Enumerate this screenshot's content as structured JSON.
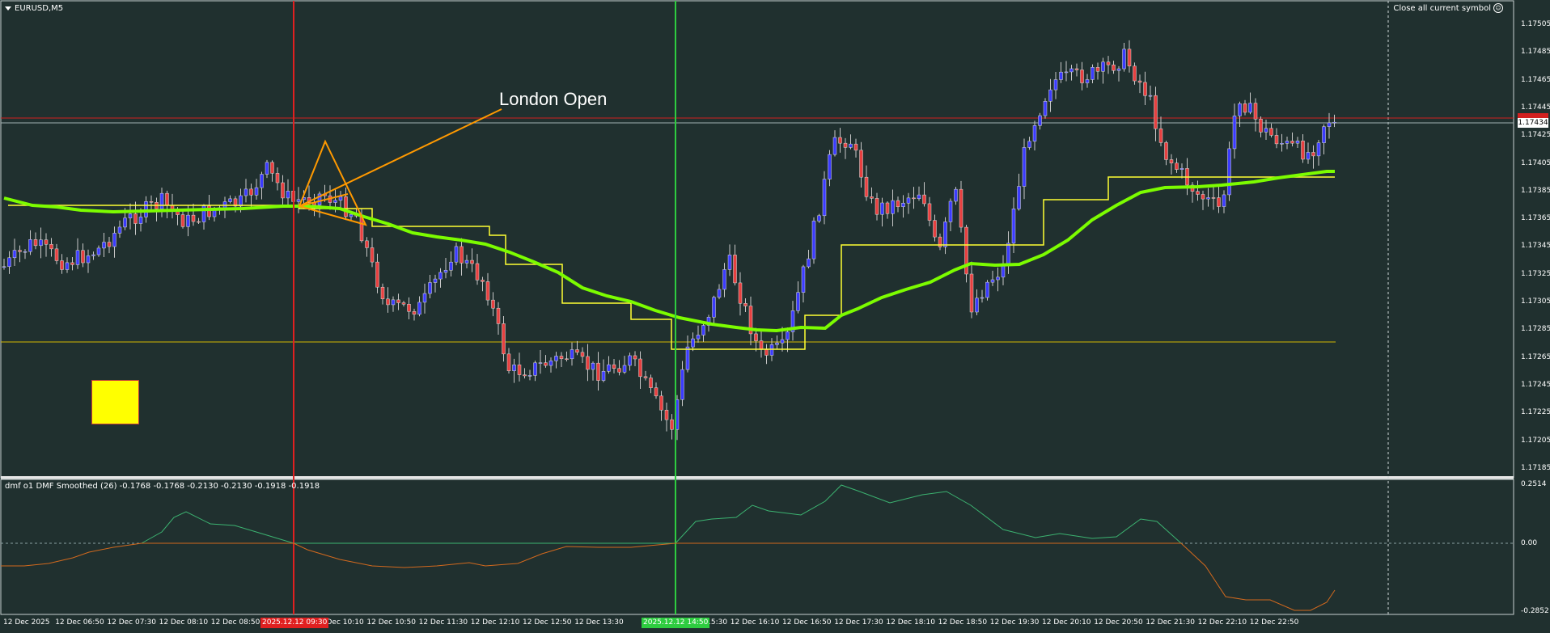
{
  "window": {
    "symbol_title": "EURUSD,M5",
    "close_all_label": "Close all current symbol",
    "close_all_icon": "smiley-icon"
  },
  "annotation": {
    "london_open_label": "London Open",
    "yellow_box_color": "#ffff00"
  },
  "indicator": {
    "label": "dmf o1 DMF Smoothed (26) -0.1768 -0.1768 -0.2130 -0.2130 -0.1918 -0.1918",
    "axis_labels": [
      "0.2514",
      "0.00",
      "-0.2852"
    ]
  },
  "price_axis": {
    "labels": [
      "1.17505",
      "1.17485",
      "1.17465",
      "1.17445",
      "1.17425",
      "1.17405",
      "1.17385",
      "1.17365",
      "1.17345",
      "1.17325",
      "1.17305",
      "1.17285",
      "1.17265",
      "1.17245",
      "1.17225",
      "1.17205",
      "1.17185"
    ],
    "current_price": "1.17434"
  },
  "time_axis": {
    "labels": [
      "12 Dec 2025",
      "12 Dec 06:50",
      "12 Dec 07:30",
      "12 Dec 08:10",
      "12 Dec 08:50",
      "",
      "12 Dec 10:10",
      "12 Dec 10:50",
      "12 Dec 11:30",
      "12 Dec 12:10",
      "12 Dec 12:50",
      "12 Dec 13:30",
      "",
      "12 Dec 15:30",
      "12 Dec 16:10",
      "12 Dec 16:50",
      "12 Dec 17:30",
      "12 Dec 18:10",
      "12 Dec 18:50",
      "12 Dec 19:30",
      "12 Dec 20:10",
      "12 Dec 20:50",
      "12 Dec 21:30",
      "12 Dec 22:10",
      "12 Dec 22:50"
    ],
    "red_marker_label": "2025.12.12 09:30",
    "green_marker_label": "2025.12.12 14:50"
  },
  "colors": {
    "background": "#20302f",
    "bull_candle": "#3b3bff",
    "bear_candle": "#e84040",
    "ma_green": "#7cfc00",
    "yellow_line": "#ffff33",
    "dmf_positive": "#3cb371",
    "dmf_negative": "#d2691e",
    "red_vline": "#e02020",
    "green_vline": "#2ecc40",
    "triangle": "#ff9900"
  },
  "chart_data": {
    "type": "candlestick",
    "price_range": [
      1.1718,
      1.1751
    ],
    "indicator_range": [
      -0.2852,
      0.2514
    ],
    "notes": "EURUSD M5 candlestick chart with moving average, step-line level, and DMF smoothed oscillator subwindow"
  }
}
